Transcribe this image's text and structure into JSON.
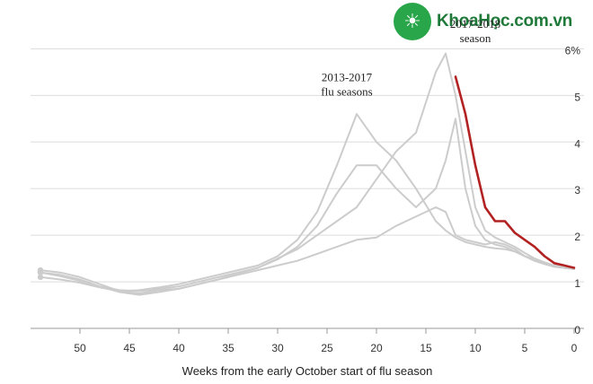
{
  "watermark": {
    "text": "KhoaHọc.com.vn",
    "icon": "lightbulb-icon",
    "color": "#2aa64a"
  },
  "chart_data": {
    "type": "line",
    "title": "",
    "xlabel": "Weeks from the early October start of flu season",
    "ylabel": "",
    "x_reversed": true,
    "xlim": [
      55,
      -1
    ],
    "ylim": [
      0,
      6.2
    ],
    "x_ticks": [
      "50",
      "45",
      "40",
      "35",
      "30",
      "25",
      "20",
      "15",
      "10",
      "5",
      "0"
    ],
    "y_ticks": [
      "1",
      "2",
      "3",
      "4",
      "5",
      "6%"
    ],
    "grid": true,
    "annotations": [
      {
        "lines": [
          "2013-2017",
          "flu seasons"
        ],
        "x": 23,
        "y": 5.3
      },
      {
        "lines": [
          "2017-2018",
          "season"
        ],
        "x": 10,
        "y": 6.45
      }
    ],
    "colors": {
      "highlight": "#b22222",
      "past": "#cccccc"
    },
    "series": [
      {
        "name": "2017-2018",
        "highlight": true,
        "x": [
          12,
          11,
          10,
          9,
          8,
          7,
          6,
          5,
          4,
          3,
          2,
          1,
          0
        ],
        "y": [
          5.4,
          4.6,
          3.5,
          2.6,
          2.3,
          2.3,
          2.05,
          1.9,
          1.75,
          1.55,
          1.4,
          1.35,
          1.3
        ]
      },
      {
        "name": "",
        "x": [
          54,
          52,
          50,
          48,
          46,
          44,
          42,
          40,
          38,
          36,
          34,
          32,
          30,
          28,
          26,
          24,
          22,
          20,
          18,
          16,
          14,
          13,
          12,
          11,
          10,
          9,
          8,
          7,
          6,
          5,
          4,
          3,
          2,
          1,
          0
        ],
        "y": [
          1.25,
          1.2,
          1.1,
          0.95,
          0.8,
          0.75,
          0.82,
          0.85,
          0.95,
          1.05,
          1.15,
          1.25,
          1.35,
          1.45,
          1.6,
          1.75,
          1.9,
          1.95,
          2.2,
          2.4,
          2.6,
          2.5,
          2.0,
          1.9,
          1.85,
          1.8,
          1.85,
          1.8,
          1.7,
          1.55,
          1.45,
          1.38,
          1.32,
          1.3,
          1.28
        ]
      },
      {
        "name": "",
        "x": [
          54,
          52,
          50,
          48,
          46,
          44,
          42,
          40,
          38,
          36,
          34,
          32,
          30,
          28,
          26,
          24,
          22,
          20,
          18,
          16,
          14,
          13,
          12,
          11,
          10,
          9,
          8,
          7,
          6,
          5,
          4,
          3,
          2,
          1,
          0
        ],
        "y": [
          1.2,
          1.15,
          1.05,
          0.9,
          0.82,
          0.8,
          0.85,
          0.9,
          1.0,
          1.1,
          1.2,
          1.3,
          1.5,
          1.7,
          2.0,
          2.3,
          2.6,
          3.2,
          3.8,
          4.2,
          5.5,
          5.9,
          5.0,
          3.8,
          2.6,
          2.1,
          1.95,
          1.85,
          1.75,
          1.62,
          1.5,
          1.42,
          1.35,
          1.3,
          1.28
        ]
      },
      {
        "name": "",
        "x": [
          54,
          52,
          50,
          48,
          46,
          44,
          42,
          40,
          38,
          36,
          34,
          32,
          30,
          28,
          26,
          24,
          22,
          20,
          18,
          16,
          14,
          13,
          12,
          11,
          10,
          9,
          8,
          7,
          6,
          5,
          4,
          3,
          2,
          1,
          0
        ],
        "y": [
          1.1,
          1.05,
          0.98,
          0.88,
          0.8,
          0.82,
          0.88,
          0.95,
          1.05,
          1.15,
          1.25,
          1.35,
          1.55,
          1.9,
          2.5,
          3.5,
          4.6,
          4.0,
          3.6,
          3.0,
          2.3,
          2.1,
          1.95,
          1.85,
          1.8,
          1.75,
          1.72,
          1.7,
          1.65,
          1.55,
          1.48,
          1.4,
          1.35,
          1.3,
          1.27
        ]
      },
      {
        "name": "",
        "x": [
          54,
          52,
          50,
          48,
          46,
          44,
          42,
          40,
          38,
          36,
          34,
          32,
          30,
          28,
          26,
          24,
          22,
          20,
          18,
          16,
          14,
          13,
          12,
          11,
          10,
          9,
          8,
          7,
          6,
          5,
          4,
          3,
          2,
          1,
          0
        ],
        "y": [
          1.2,
          1.12,
          1.02,
          0.9,
          0.78,
          0.72,
          0.78,
          0.85,
          0.95,
          1.05,
          1.18,
          1.3,
          1.48,
          1.75,
          2.2,
          2.9,
          3.5,
          3.5,
          3.0,
          2.6,
          3.0,
          3.6,
          4.5,
          3.0,
          2.2,
          1.9,
          1.8,
          1.75,
          1.65,
          1.55,
          1.45,
          1.38,
          1.33,
          1.3,
          1.27
        ]
      }
    ]
  }
}
